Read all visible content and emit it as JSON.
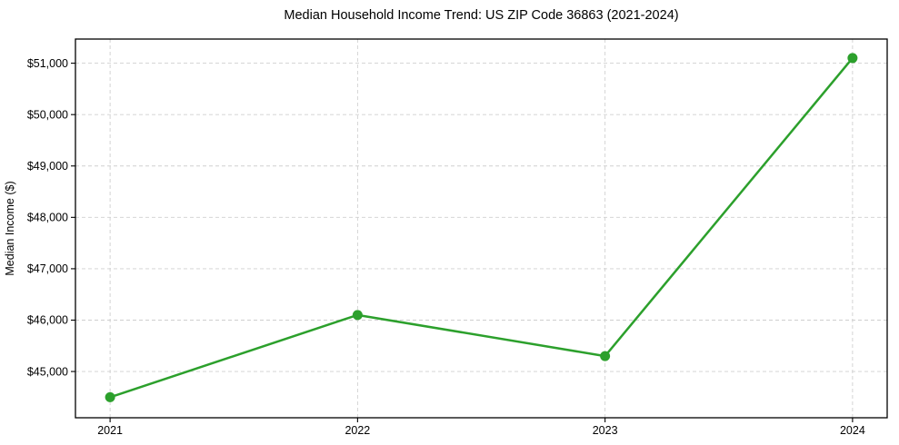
{
  "chart_data": {
    "type": "line",
    "title": "Median Household Income Trend: US ZIP Code 36863 (2021-2024)",
    "xlabel": "",
    "ylabel": "Median Income ($)",
    "x": [
      2021,
      2022,
      2023,
      2024
    ],
    "x_tick_labels": [
      "2021",
      "2022",
      "2023",
      "2024"
    ],
    "series": [
      {
        "name": "Median Household Income",
        "values": [
          44500,
          46100,
          45300,
          51100
        ],
        "color": "#2ca02c",
        "marker": "circle"
      }
    ],
    "y_ticks": [
      45000,
      46000,
      47000,
      48000,
      49000,
      50000,
      51000
    ],
    "y_tick_labels": [
      "$45,000",
      "$46,000",
      "$47,000",
      "$48,000",
      "$49,000",
      "$50,000",
      "$51,000"
    ],
    "xlim": [
      2020.86,
      2024.14
    ],
    "ylim": [
      44100,
      51470
    ],
    "grid": true,
    "legend": false
  },
  "colors": {
    "line": "#2ca02c",
    "grid": "#cfcfcf",
    "axis": "#000000",
    "text": "#000000",
    "background": "#ffffff"
  }
}
